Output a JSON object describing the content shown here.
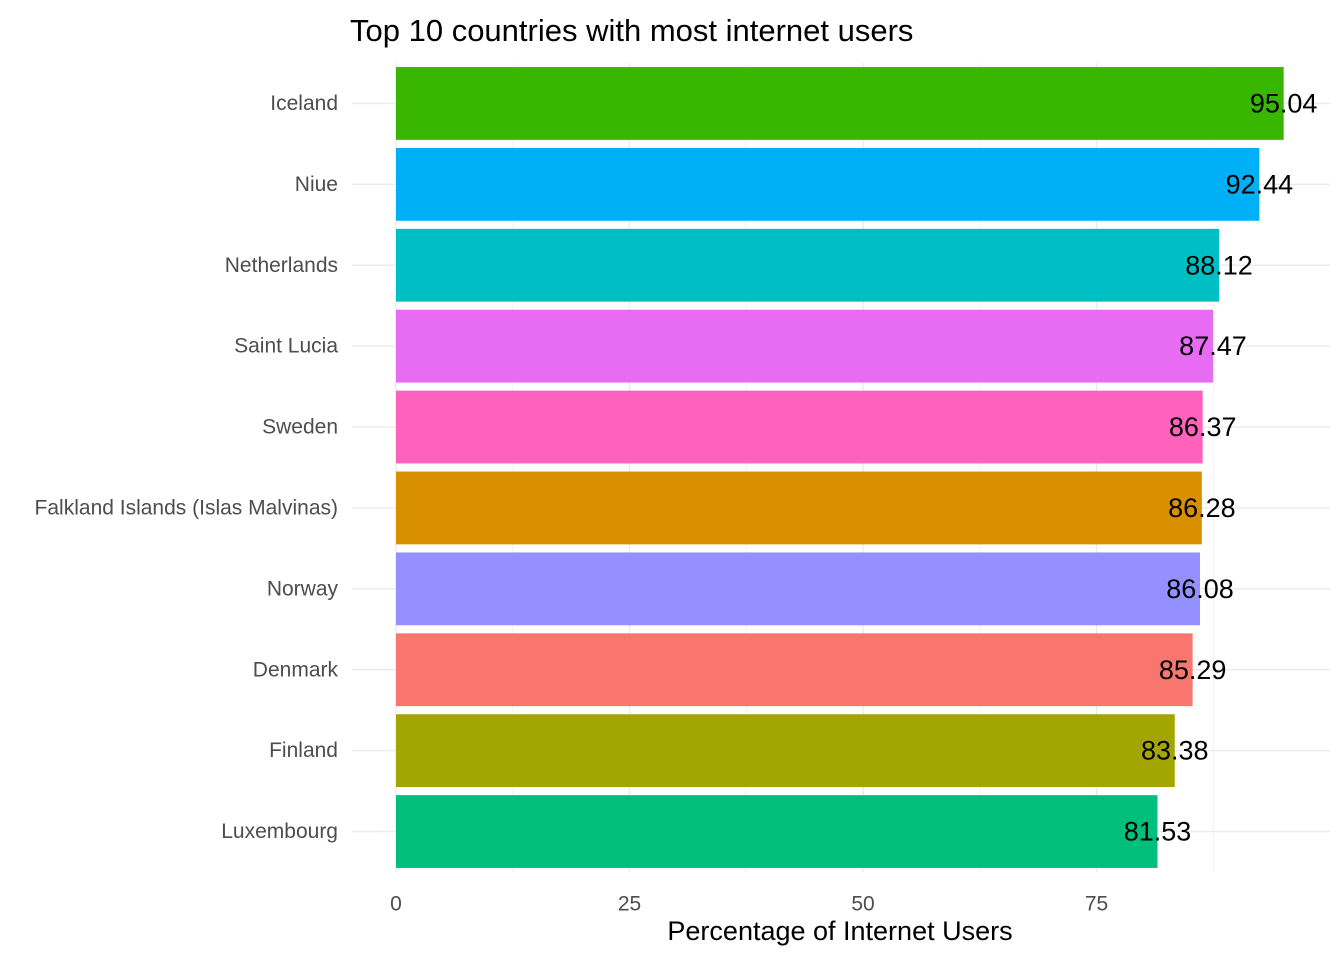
{
  "chart_data": {
    "type": "bar",
    "orientation": "horizontal",
    "title": "Top 10 countries with most internet users",
    "xlabel": "Percentage of Internet Users",
    "ylabel": "",
    "xlim": [
      0,
      100
    ],
    "x_ticks": [
      0,
      25,
      50,
      75
    ],
    "x_tick_labels": [
      "0",
      "25",
      "50",
      "75"
    ],
    "grid": true,
    "legend": "none",
    "categories": [
      "Iceland",
      "Niue",
      "Netherlands",
      "Saint Lucia",
      "Sweden",
      "Falkland Islands (Islas Malvinas)",
      "Norway",
      "Denmark",
      "Finland",
      "Luxembourg"
    ],
    "values": [
      95.04,
      92.44,
      88.12,
      87.47,
      86.37,
      86.28,
      86.08,
      85.29,
      83.38,
      81.53
    ],
    "value_labels": [
      "95.04",
      "92.44",
      "88.12",
      "87.47",
      "86.37",
      "86.28",
      "86.08",
      "85.29",
      "83.38",
      "81.53"
    ],
    "colors": [
      "#39B600",
      "#00B0F6",
      "#00BFC4",
      "#E76BF3",
      "#FF62BC",
      "#D89000",
      "#9590FF",
      "#F8766D",
      "#A3A500",
      "#00BF7D"
    ]
  }
}
